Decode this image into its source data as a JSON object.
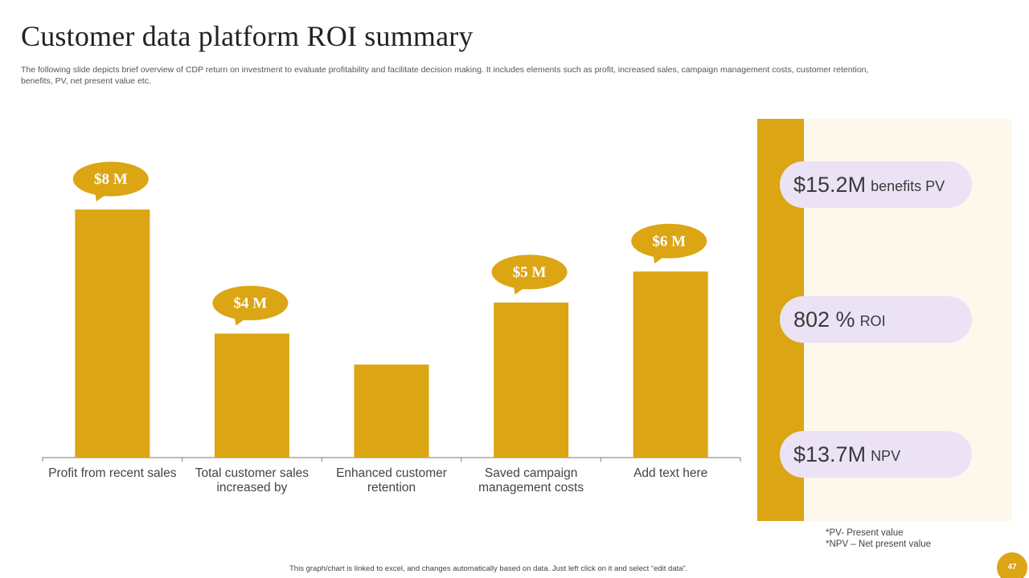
{
  "slide": {
    "title": "Customer data platform ROI summary",
    "subtitle": "The following slide depicts brief overview of CDP return on investment to evaluate profitability and facilitate decision making. It includes elements such as profit, increased sales, campaign management costs, customer retention, benefits, PV, net present value etc.",
    "footer": "This graph/chart is linked to excel, and changes automatically based on data. Just left click on it and select “edit data”.",
    "page_number": "47"
  },
  "colors": {
    "bar": "#dba514",
    "bubble": "#dba514",
    "pill": "#ece2f6",
    "panel_bg": "#fdf8ec"
  },
  "chart_data": {
    "type": "bar",
    "title": "",
    "xlabel": "",
    "ylabel": "",
    "categories": [
      "Profit from recent sales",
      "Total customer sales increased by",
      "Enhanced customer retention",
      "Saved campaign management costs",
      "Add text here"
    ],
    "category_lines": [
      [
        "Profit from recent sales"
      ],
      [
        "Total customer sales",
        "increased by"
      ],
      [
        "Enhanced customer",
        "retention"
      ],
      [
        "Saved campaign",
        "management costs"
      ],
      [
        "Add text here"
      ]
    ],
    "values": [
      8,
      4,
      3,
      5,
      6
    ],
    "data_labels": [
      "$8 M",
      "$4 M",
      "",
      "$5 M",
      "$6 M"
    ],
    "ylim": [
      0,
      8
    ],
    "grid": false,
    "legend": "none"
  },
  "metrics": [
    {
      "value": "$15.2M",
      "label": "benefits PV"
    },
    {
      "value": "802 %",
      "label": "ROI"
    },
    {
      "value": "$13.7M",
      "label": "NPV"
    }
  ],
  "notes": [
    "*PV- Present value",
    "*NPV – Net present value"
  ]
}
